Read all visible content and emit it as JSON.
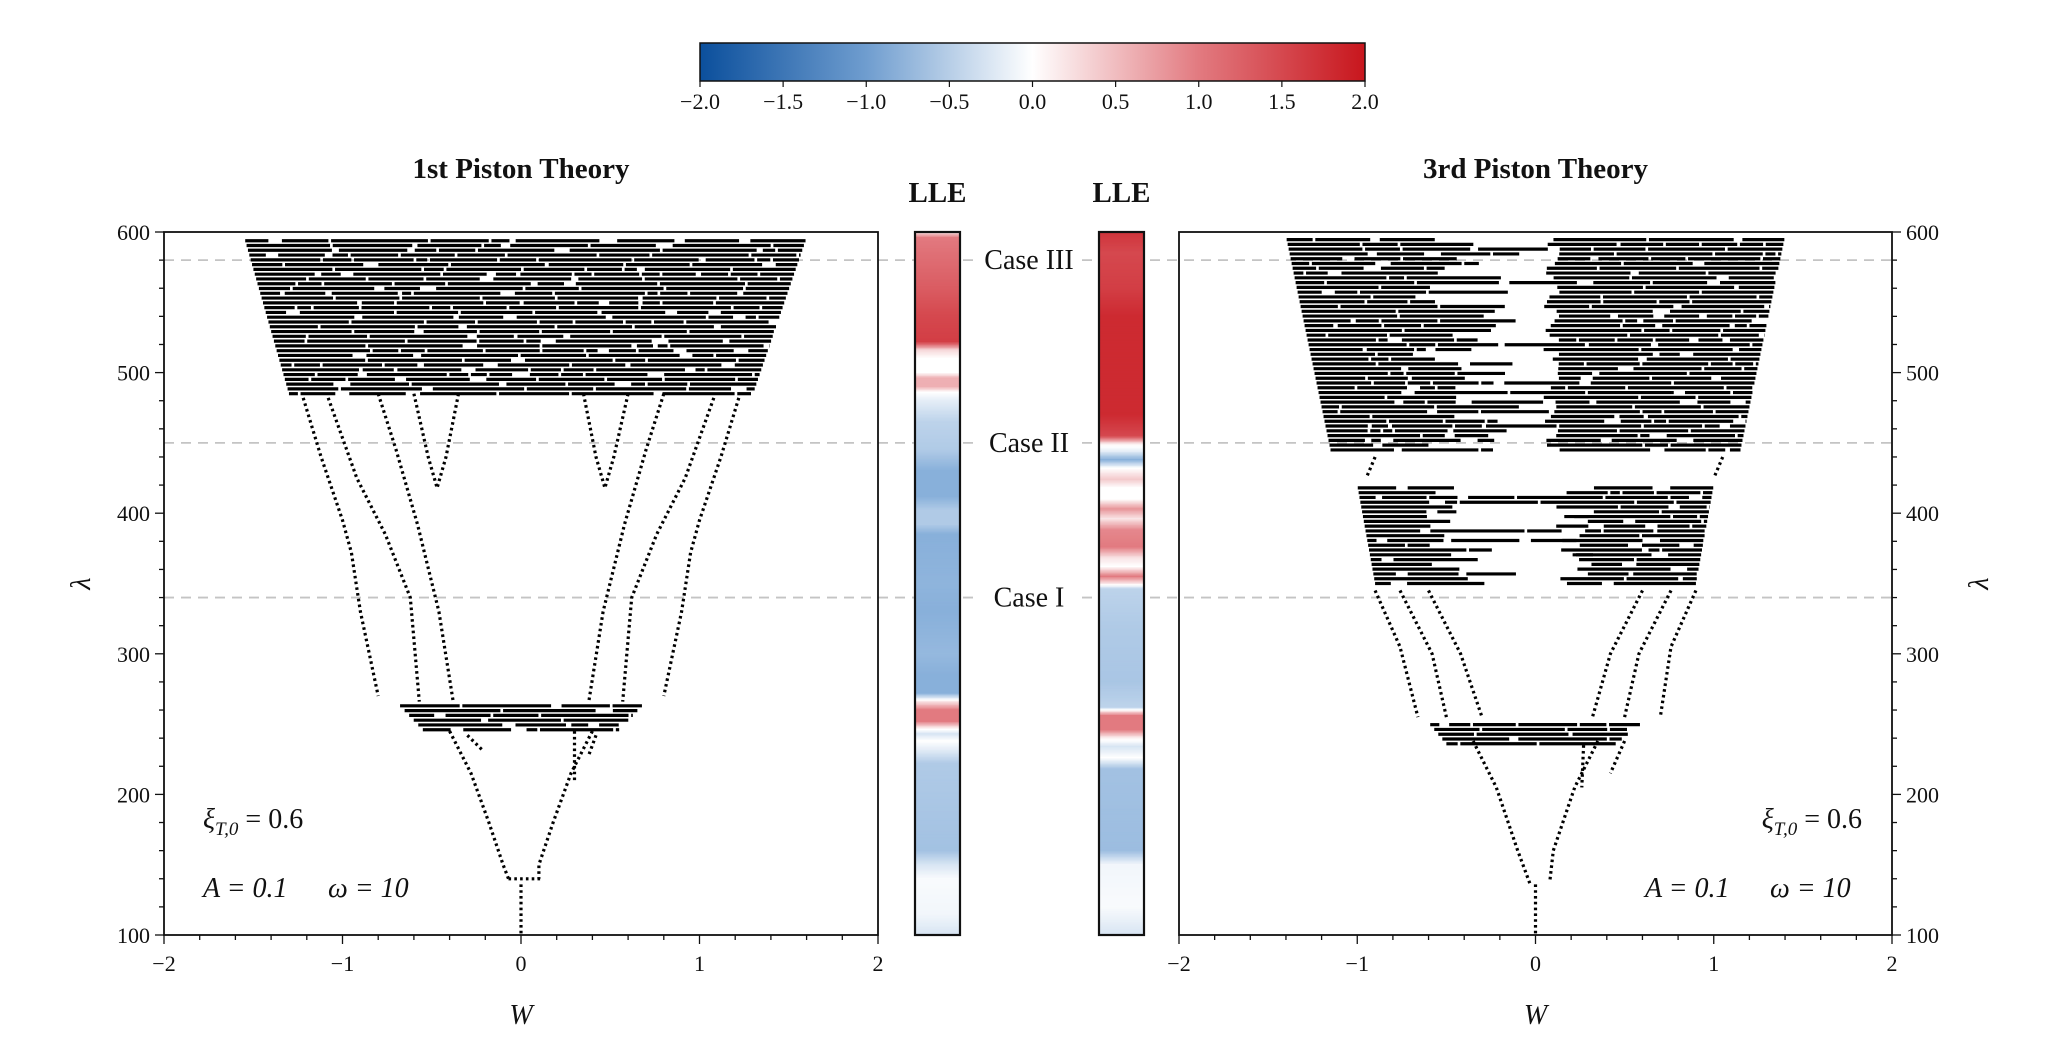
{
  "colorbar": {
    "range": [
      -2,
      2
    ],
    "ticks": [
      "−2.0",
      "−1.5",
      "−1.0",
      "−0.5",
      "0.0",
      "0.5",
      "1.0",
      "1.5",
      "2.0"
    ],
    "colors": {
      "neg": "#0b4f9c",
      "mid_neg": "#7ba7d6",
      "zero": "#ffffff",
      "mid_pos": "#e27a80",
      "pos": "#c8161d"
    }
  },
  "cases": [
    {
      "label": "Case III",
      "lambda": 580
    },
    {
      "label": "Case II",
      "lambda": 450
    },
    {
      "label": "Case I",
      "lambda": 340
    }
  ],
  "chart_data": [
    {
      "type": "scatter",
      "panel": "left",
      "title": "1st  Piston Theory",
      "xlabel": "W",
      "ylabel": "λ",
      "xlim": [
        -2,
        2
      ],
      "ylim": [
        100,
        600
      ],
      "xticks": [
        "−2",
        "−1",
        "0",
        "1",
        "2"
      ],
      "yticks": [
        "100",
        "200",
        "300",
        "400",
        "500",
        "600"
      ],
      "annotation": {
        "xi": "ξ",
        "xi_sub": "T,0",
        "xi_value": " = 0.6",
        "A": "A = 0.1",
        "omega": "ω = 10"
      },
      "chaotic_bands": [
        {
          "lambda": [
            485,
            596
          ],
          "W_bottom": [
            -1.3,
            1.3
          ],
          "W_top": [
            -1.55,
            1.6
          ],
          "gap_rate": 0.12
        },
        {
          "lambda": [
            246,
            266
          ],
          "W_bottom": [
            -0.55,
            0.55
          ],
          "W_top": [
            -0.7,
            0.7
          ],
          "gap_rate": 0.1
        }
      ],
      "branches": [
        [
          [
            -1.22,
            482
          ],
          [
            -1.12,
            440
          ],
          [
            -1.0,
            395
          ],
          [
            -0.95,
            372
          ],
          [
            -0.9,
            330
          ],
          [
            -0.8,
            270
          ]
        ],
        [
          [
            -1.08,
            482
          ],
          [
            -0.92,
            425
          ],
          [
            -0.76,
            385
          ],
          [
            -0.62,
            340
          ],
          [
            -0.57,
            266
          ]
        ],
        [
          [
            -0.8,
            485
          ],
          [
            -0.7,
            445
          ],
          [
            -0.58,
            392
          ],
          [
            -0.46,
            330
          ],
          [
            -0.38,
            266
          ]
        ],
        [
          [
            -0.6,
            485
          ],
          [
            -0.52,
            440
          ],
          [
            -0.47,
            418
          ]
        ],
        [
          [
            -0.35,
            485
          ],
          [
            -0.42,
            440
          ],
          [
            -0.47,
            418
          ]
        ],
        [
          [
            1.22,
            482
          ],
          [
            1.12,
            440
          ],
          [
            1.0,
            395
          ],
          [
            0.95,
            372
          ],
          [
            0.9,
            330
          ],
          [
            0.8,
            270
          ]
        ],
        [
          [
            1.08,
            482
          ],
          [
            0.92,
            425
          ],
          [
            0.76,
            385
          ],
          [
            0.62,
            340
          ],
          [
            0.57,
            266
          ]
        ],
        [
          [
            0.8,
            485
          ],
          [
            0.7,
            445
          ],
          [
            0.58,
            392
          ],
          [
            0.46,
            330
          ],
          [
            0.38,
            266
          ]
        ],
        [
          [
            0.6,
            485
          ],
          [
            0.52,
            440
          ],
          [
            0.47,
            418
          ]
        ],
        [
          [
            0.35,
            485
          ],
          [
            0.42,
            440
          ],
          [
            0.47,
            418
          ]
        ],
        [
          [
            -0.4,
            245
          ],
          [
            -0.28,
            215
          ],
          [
            -0.18,
            180
          ],
          [
            -0.1,
            150
          ],
          [
            -0.07,
            140
          ]
        ],
        [
          [
            0.4,
            245
          ],
          [
            0.28,
            215
          ],
          [
            0.18,
            180
          ],
          [
            0.1,
            150
          ],
          [
            0.1,
            140
          ]
        ],
        [
          [
            -0.3,
            242
          ],
          [
            -0.22,
            232
          ]
        ],
        [
          [
            0.3,
            245
          ],
          [
            0.3,
            210
          ]
        ],
        [
          [
            0.42,
            242
          ],
          [
            0.38,
            228
          ]
        ],
        [
          [
            -0.07,
            140
          ],
          [
            0.12,
            140
          ]
        ],
        [
          [
            0,
            136
          ],
          [
            0,
            100
          ]
        ]
      ],
      "lle": {
        "label": "LLE",
        "profile": [
          [
            600,
            0.2
          ],
          [
            596,
            1.0
          ],
          [
            585,
            1.1
          ],
          [
            560,
            1.3
          ],
          [
            540,
            1.5
          ],
          [
            522,
            1.6
          ],
          [
            516,
            0.3
          ],
          [
            510,
            0.0
          ],
          [
            500,
            0.0
          ],
          [
            496,
            0.6
          ],
          [
            490,
            0.6
          ],
          [
            486,
            0.0
          ],
          [
            480,
            -0.2
          ],
          [
            465,
            -0.5
          ],
          [
            445,
            -0.6
          ],
          [
            430,
            -0.9
          ],
          [
            412,
            -0.9
          ],
          [
            402,
            -0.6
          ],
          [
            392,
            -0.6
          ],
          [
            385,
            -0.9
          ],
          [
            350,
            -0.85
          ],
          [
            330,
            -0.9
          ],
          [
            300,
            -0.8
          ],
          [
            285,
            -0.9
          ],
          [
            272,
            -0.9
          ],
          [
            266,
            0.2
          ],
          [
            260,
            1.0
          ],
          [
            252,
            1.0
          ],
          [
            247,
            0.1
          ],
          [
            243,
            -0.3
          ],
          [
            238,
            0.0
          ],
          [
            232,
            -0.2
          ],
          [
            222,
            -0.6
          ],
          [
            160,
            -0.7
          ],
          [
            150,
            -0.3
          ],
          [
            140,
            -0.05
          ],
          [
            115,
            -0.1
          ],
          [
            100,
            -0.3
          ]
        ]
      }
    },
    {
      "type": "scatter",
      "panel": "right",
      "title": "3rd  Piston Theory",
      "xlabel": "W",
      "ylabel": "λ",
      "xlim": [
        -2,
        2
      ],
      "ylim": [
        100,
        600
      ],
      "xticks": [
        "−2",
        "−1",
        "0",
        "1",
        "2"
      ],
      "yticks": [
        "100",
        "200",
        "300",
        "400",
        "500",
        "600"
      ],
      "annotation": {
        "xi": "ξ",
        "xi_sub": "T,0",
        "xi_value": " = 0.6",
        "A": "A = 0.1",
        "omega": "ω = 10"
      },
      "chaotic_bands": [
        {
          "lambda": [
            445,
            597
          ],
          "W_bottom": [
            -1.15,
            1.15
          ],
          "W_top": [
            -1.4,
            1.4
          ],
          "gap_rate": 0.14,
          "center_gap": 0.15
        },
        {
          "lambda": [
            350,
            420
          ],
          "W_bottom": [
            -0.9,
            0.9
          ],
          "W_top": [
            -1.0,
            1.0
          ],
          "gap_rate": 0.15,
          "center_gap": 0.35
        },
        {
          "lambda": [
            236,
            251
          ],
          "W_bottom": [
            -0.5,
            0.45
          ],
          "W_top": [
            -0.6,
            0.6
          ],
          "gap_rate": 0.1
        }
      ],
      "branches": [
        [
          [
            -0.9,
            345
          ],
          [
            -0.76,
            305
          ],
          [
            -0.66,
            255
          ]
        ],
        [
          [
            -0.76,
            345
          ],
          [
            -0.58,
            300
          ],
          [
            -0.5,
            255
          ]
        ],
        [
          [
            -0.6,
            345
          ],
          [
            -0.42,
            300
          ],
          [
            -0.3,
            255
          ]
        ],
        [
          [
            0.9,
            345
          ],
          [
            0.76,
            305
          ],
          [
            0.7,
            255
          ]
        ],
        [
          [
            0.76,
            345
          ],
          [
            0.58,
            300
          ],
          [
            0.5,
            255
          ]
        ],
        [
          [
            0.6,
            345
          ],
          [
            0.42,
            300
          ],
          [
            0.32,
            255
          ]
        ],
        [
          [
            -0.9,
            440
          ],
          [
            -0.95,
            425
          ]
        ],
        [
          [
            1.05,
            440
          ],
          [
            1.0,
            425
          ]
        ],
        [
          [
            -0.35,
            238
          ],
          [
            -0.22,
            205
          ],
          [
            -0.1,
            160
          ],
          [
            -0.03,
            136
          ]
        ],
        [
          [
            0.35,
            238
          ],
          [
            0.22,
            205
          ],
          [
            0.1,
            160
          ],
          [
            0.08,
            138
          ]
        ],
        [
          [
            0.27,
            235
          ],
          [
            0.26,
            205
          ]
        ],
        [
          [
            0.5,
            238
          ],
          [
            0.42,
            215
          ]
        ],
        [
          [
            0,
            136
          ],
          [
            0,
            100
          ]
        ]
      ],
      "lle": {
        "label": "LLE",
        "profile": [
          [
            600,
            1.7
          ],
          [
            585,
            1.5
          ],
          [
            560,
            1.6
          ],
          [
            540,
            1.8
          ],
          [
            470,
            1.8
          ],
          [
            455,
            1.5
          ],
          [
            449,
            0.1
          ],
          [
            444,
            -0.2
          ],
          [
            438,
            -0.9
          ],
          [
            432,
            0.0
          ],
          [
            424,
            0.4
          ],
          [
            418,
            0.0
          ],
          [
            410,
            0.0
          ],
          [
            403,
            0.8
          ],
          [
            396,
            0.2
          ],
          [
            388,
            0.9
          ],
          [
            376,
            1.0
          ],
          [
            368,
            0.2
          ],
          [
            362,
            0.0
          ],
          [
            355,
            1.0
          ],
          [
            350,
            0.2
          ],
          [
            346,
            -0.5
          ],
          [
            320,
            -0.6
          ],
          [
            280,
            -0.65
          ],
          [
            262,
            -0.5
          ],
          [
            256,
            1.0
          ],
          [
            246,
            1.0
          ],
          [
            240,
            0.1
          ],
          [
            234,
            -0.3
          ],
          [
            226,
            0.0
          ],
          [
            218,
            -0.7
          ],
          [
            160,
            -0.75
          ],
          [
            150,
            -0.1
          ],
          [
            120,
            -0.05
          ],
          [
            100,
            -0.3
          ]
        ]
      }
    }
  ]
}
